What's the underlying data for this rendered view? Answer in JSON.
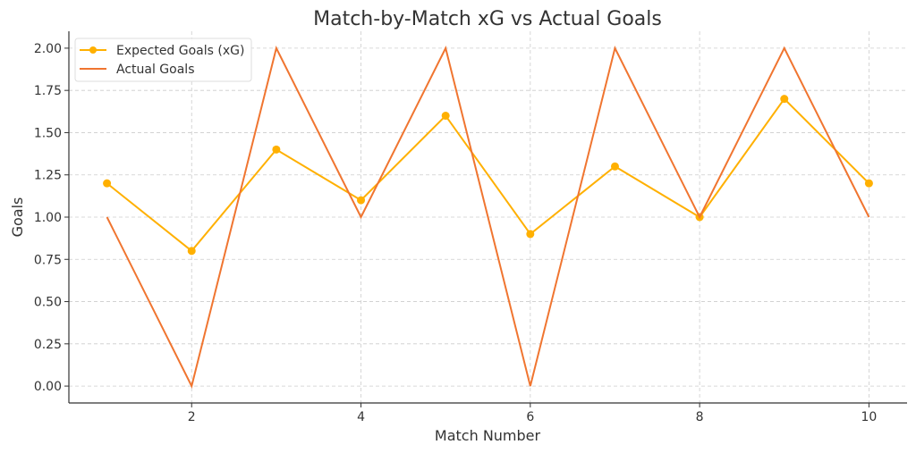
{
  "chart_data": {
    "type": "line",
    "title": "Match-by-Match xG vs Actual Goals",
    "xlabel": "Match Number",
    "ylabel": "Goals",
    "x": [
      1,
      2,
      3,
      4,
      5,
      6,
      7,
      8,
      9,
      10
    ],
    "xlim": [
      0.55,
      10.45
    ],
    "ylim": [
      -0.1,
      2.1
    ],
    "xticks": [
      2,
      4,
      6,
      8,
      10
    ],
    "xtick_labels": [
      "2",
      "4",
      "6",
      "8",
      "10"
    ],
    "yticks": [
      0,
      0.25,
      0.5,
      0.75,
      1.0,
      1.25,
      1.5,
      1.75,
      2.0
    ],
    "ytick_labels": [
      "0.00",
      "0.25",
      "0.50",
      "0.75",
      "1.00",
      "1.25",
      "1.50",
      "1.75",
      "2.00"
    ],
    "grid": true,
    "legend_position": "top-left",
    "series": [
      {
        "name": "Expected Goals (xG)",
        "values": [
          1.2,
          0.8,
          1.4,
          1.1,
          1.6,
          0.9,
          1.3,
          1.0,
          1.7,
          1.2
        ],
        "color": "#FFB000",
        "marker": "circle"
      },
      {
        "name": "Actual Goals",
        "values": [
          1,
          0,
          2,
          1,
          2,
          0,
          2,
          1,
          2,
          1
        ],
        "color": "#F07530",
        "marker": "none"
      }
    ]
  }
}
